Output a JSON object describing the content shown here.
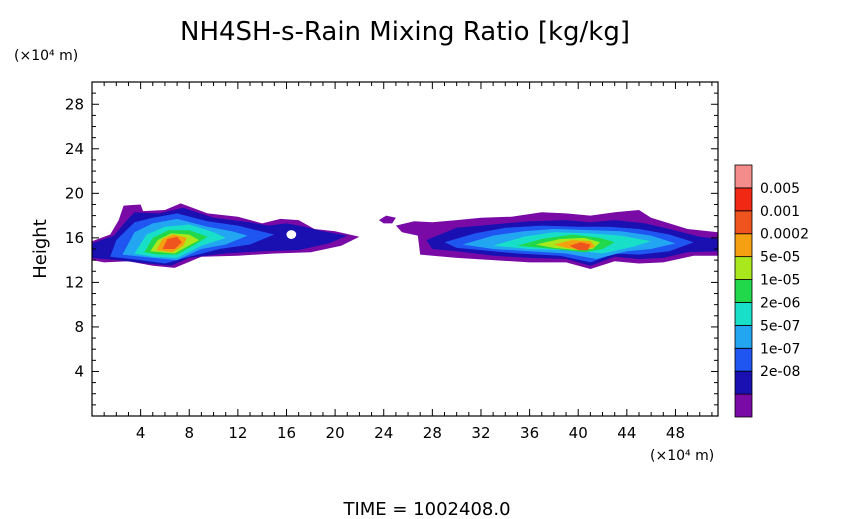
{
  "chart_data": {
    "type": "heatmap",
    "title": "NH4SH-s-Rain Mixing Ratio [kg/kg]",
    "ylabel": "Height",
    "y_unit_label": "(×10⁴ m)",
    "x_unit_label": "(×10⁴ m)",
    "xlim": [
      0,
      51.5
    ],
    "ylim": [
      0,
      30
    ],
    "x_ticks": [
      4,
      8,
      12,
      16,
      20,
      24,
      28,
      32,
      36,
      40,
      44,
      48
    ],
    "y_ticks": [
      4,
      8,
      12,
      16,
      20,
      24,
      28
    ],
    "colorbar": {
      "scale": "log",
      "labels": [
        "0.005",
        "0.001",
        "0.0002",
        "5e-05",
        "1e-05",
        "2e-06",
        "5e-07",
        "1e-07",
        "2e-08"
      ],
      "colors": [
        "#7a0aa6",
        "#1a0fb0",
        "#1f55f0",
        "#22a6f2",
        "#18e0c8",
        "#20d84a",
        "#a8e81c",
        "#f5a010",
        "#f0541e",
        "#f02814",
        "#f58c8c"
      ]
    },
    "cloud_regions": [
      {
        "name": "west cloud",
        "x_range": [
          0,
          22
        ],
        "y_range": [
          13.3,
          19
        ],
        "peak": {
          "x": 7,
          "y": 15.5,
          "value": "0.001"
        }
      },
      {
        "name": "east cloud",
        "x_range": [
          25,
          51.5
        ],
        "y_range": [
          13.2,
          18.5
        ],
        "peak": {
          "x": 40.5,
          "y": 15,
          "value": "0.001"
        }
      },
      {
        "name": "small patch",
        "x_range": [
          23.7,
          25
        ],
        "y_range": [
          17.3,
          18
        ],
        "peak": {
          "x": 24.2,
          "y": 17.7,
          "value": "2e-08"
        }
      }
    ]
  },
  "footer": {
    "time_label": "TIME  =  1002408.0"
  }
}
